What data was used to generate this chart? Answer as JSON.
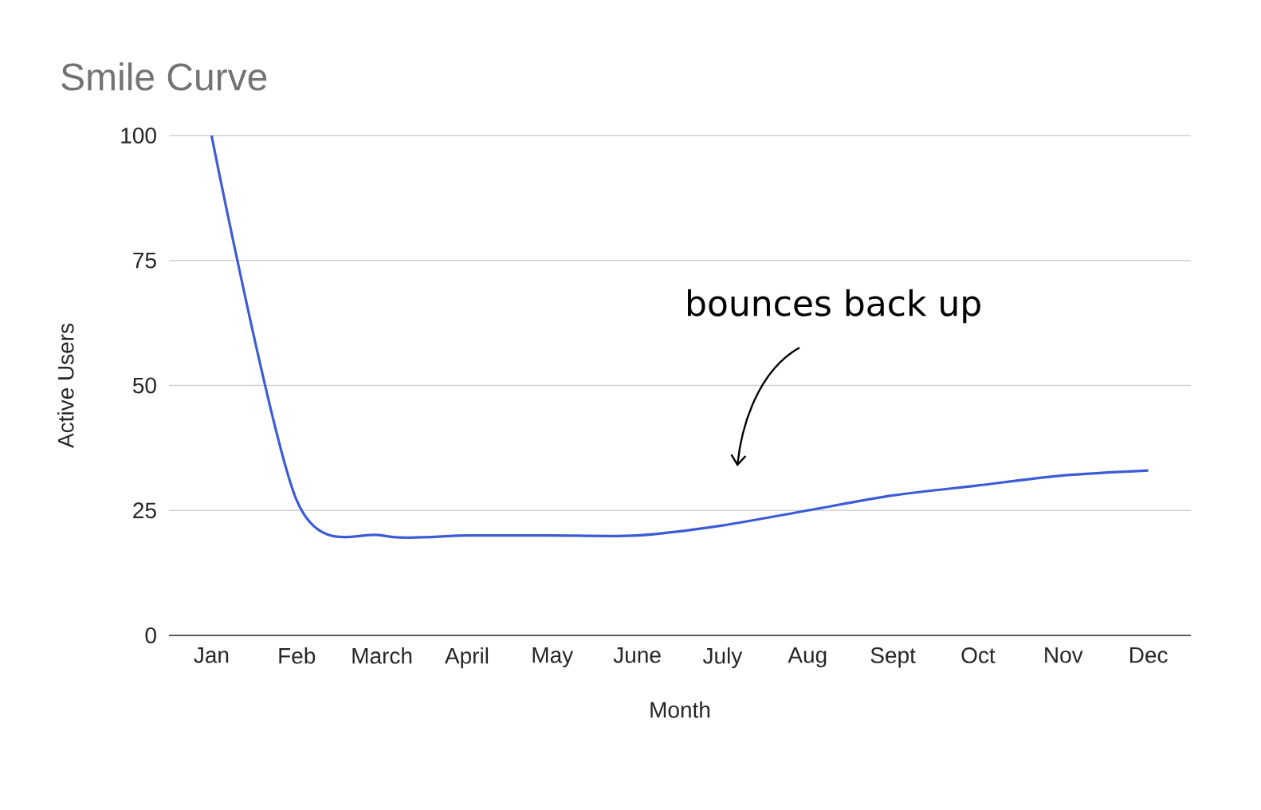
{
  "chart_data": {
    "type": "line",
    "title": "Smile Curve",
    "xlabel": "Month",
    "ylabel": "Active Users",
    "categories": [
      "Jan",
      "Feb",
      "March",
      "April",
      "May",
      "June",
      "July",
      "Aug",
      "Sept",
      "Oct",
      "Nov",
      "Dec"
    ],
    "values": [
      100,
      27,
      20,
      20,
      20,
      20,
      22,
      25,
      28,
      30,
      32,
      33
    ],
    "color": "#3c5bd6",
    "ylim": [
      0,
      100
    ],
    "yticks": [
      0,
      25,
      50,
      75,
      100
    ],
    "grid": "y",
    "annotations": [
      "bounces back up"
    ]
  }
}
